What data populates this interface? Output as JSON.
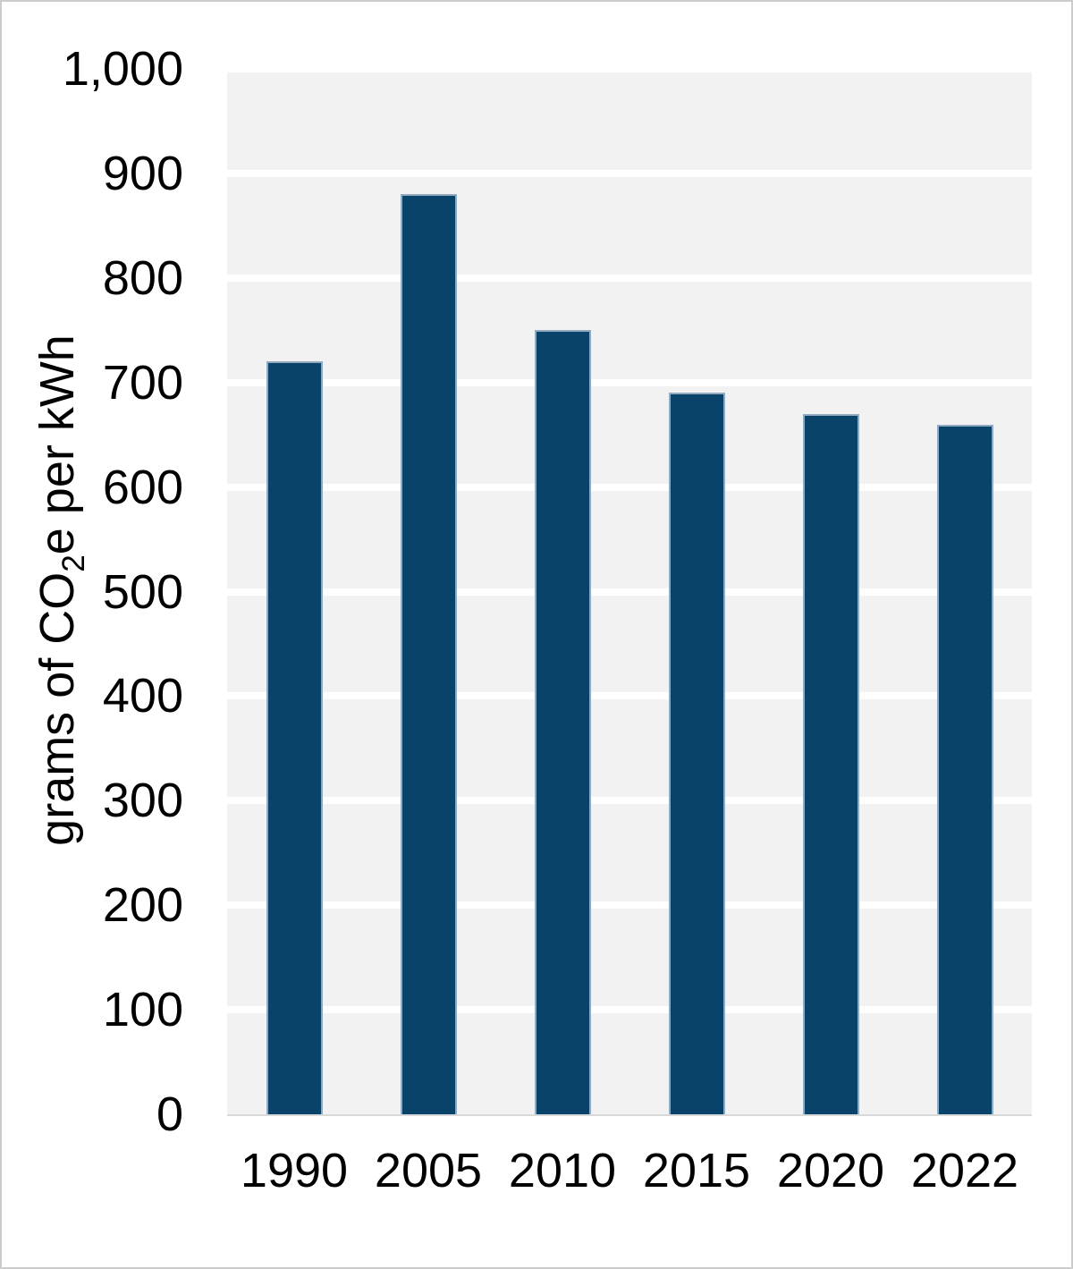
{
  "chart_data": {
    "type": "bar",
    "categories": [
      "1990",
      "2005",
      "2010",
      "2015",
      "2020",
      "2022"
    ],
    "values": [
      720,
      880,
      750,
      690,
      670,
      660
    ],
    "title": "",
    "xlabel": "",
    "ylabel": "grams of CO₂e per kWh",
    "ylabel_parts": {
      "prefix": "grams of CO",
      "subscript": "2",
      "suffix": "e per kWh"
    },
    "ylim": [
      0,
      1000
    ],
    "ytick_step": 100,
    "yticks": [
      {
        "value": 0,
        "label": "0"
      },
      {
        "value": 100,
        "label": "100"
      },
      {
        "value": 200,
        "label": "200"
      },
      {
        "value": 300,
        "label": "300"
      },
      {
        "value": 400,
        "label": "400"
      },
      {
        "value": 500,
        "label": "500"
      },
      {
        "value": 600,
        "label": "600"
      },
      {
        "value": 700,
        "label": "700"
      },
      {
        "value": 800,
        "label": "800"
      },
      {
        "value": 900,
        "label": "900"
      },
      {
        "value": 1000,
        "label": "1,000"
      }
    ],
    "grid": true,
    "legend_position": "none",
    "colors": {
      "bar_fill": "#0a436a",
      "bar_border": "#92aabf",
      "plot_background": "#f2f2f2",
      "gridline": "#ffffff",
      "axis_line": "#d9d9d9",
      "text": "#000000",
      "figure_border": "#cccccc",
      "figure_background": "#ffffff"
    }
  }
}
